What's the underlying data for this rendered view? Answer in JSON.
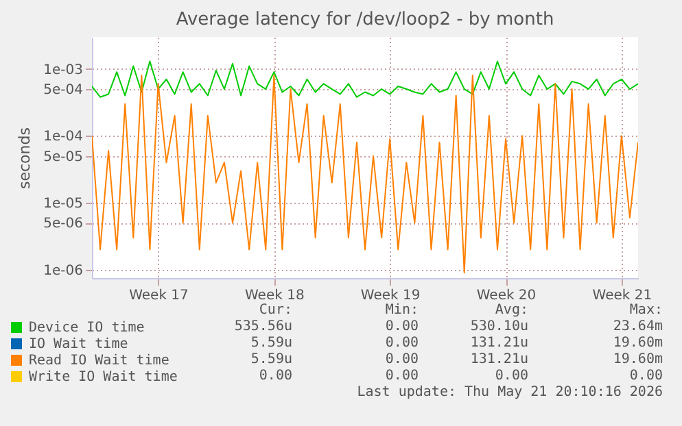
{
  "chart_data": {
    "type": "line",
    "title": "Average latency for /dev/loop2 - by month",
    "ylabel": "seconds",
    "log": true,
    "grid": true,
    "legend": "bottom",
    "categories": [
      null,
      null,
      null,
      null,
      null,
      null,
      null,
      null,
      "Week 17",
      null,
      null,
      null,
      null,
      null,
      null,
      null,
      null,
      null,
      null,
      null,
      null,
      null,
      "Week 18",
      null,
      null,
      null,
      null,
      null,
      null,
      null,
      null,
      null,
      null,
      null,
      null,
      null,
      "Week 19",
      null,
      null,
      null,
      null,
      null,
      null,
      null,
      null,
      null,
      null,
      null,
      null,
      null,
      "Week 20",
      null,
      null,
      null,
      null,
      null,
      null,
      null,
      null,
      null,
      null,
      null,
      null,
      null,
      "Week 21",
      null,
      null
    ],
    "ylim": [
      7.5e-07,
      0.003
    ],
    "yticks": [
      {
        "value": 1e-06,
        "label": "1e-06"
      },
      {
        "value": 5e-06,
        "label": "5e-06"
      },
      {
        "value": 1e-05,
        "label": "1e-05"
      },
      {
        "value": 5e-05,
        "label": "5e-05"
      },
      {
        "value": 0.0001,
        "label": "1e-04"
      },
      {
        "value": 0.0005,
        "label": "5e-04"
      },
      {
        "value": 0.001,
        "label": "1e-03"
      }
    ],
    "series": [
      {
        "name": "Device IO time",
        "color": "#00cc00",
        "values": [
          0.00055,
          0.00038,
          0.00042,
          0.0009,
          0.0004,
          0.0011,
          0.00045,
          0.0013,
          0.0005,
          0.0007,
          0.00042,
          0.0009,
          0.00045,
          0.0006,
          0.0004,
          0.00095,
          0.0005,
          0.0012,
          0.0004,
          0.0011,
          0.0006,
          0.0005,
          0.0009,
          0.00045,
          0.00055,
          0.0004,
          0.0007,
          0.00045,
          0.0006,
          0.0005,
          0.00042,
          0.0006,
          0.00038,
          0.00045,
          0.0004,
          0.0005,
          0.00042,
          0.00055,
          0.0005,
          0.00045,
          0.00042,
          0.0006,
          0.00045,
          0.0005,
          0.0009,
          0.0005,
          0.00042,
          0.0009,
          0.0005,
          0.0013,
          0.0006,
          0.0009,
          0.0005,
          0.0004,
          0.0008,
          0.0005,
          0.0006,
          0.00042,
          0.00065,
          0.0006,
          0.0005,
          0.0007,
          0.0004,
          0.0006,
          0.0007,
          0.0005,
          0.0006
        ]
      },
      {
        "name": "IO Wait time",
        "color": "#0066b3",
        "values": [
          null,
          null,
          null,
          null,
          null,
          null,
          null,
          null,
          null,
          null,
          null,
          null,
          null,
          null,
          null,
          null,
          null,
          null,
          null,
          null,
          null,
          null,
          null,
          null,
          null,
          null,
          null,
          null,
          null,
          null,
          null,
          null,
          null,
          null,
          null,
          null,
          null,
          null,
          null,
          null,
          null,
          null,
          null,
          null,
          null,
          null,
          null,
          null,
          null,
          null,
          null,
          null,
          null,
          null,
          null,
          null,
          null,
          null,
          null,
          null,
          null,
          null,
          null,
          null,
          null,
          null,
          null
        ]
      },
      {
        "name": "Read IO Wait time",
        "color": "#ff8000",
        "values": [
          0.0001,
          2e-06,
          6e-05,
          2e-06,
          0.0003,
          3e-06,
          0.0008,
          2e-06,
          0.0006,
          4e-05,
          0.0002,
          5e-06,
          0.0003,
          2e-06,
          0.0002,
          2e-05,
          4e-05,
          5e-06,
          3e-05,
          2e-06,
          4e-05,
          2e-06,
          0.0008,
          2e-06,
          0.0005,
          4e-05,
          0.0003,
          3e-06,
          0.0002,
          2e-05,
          0.0003,
          3e-06,
          8e-05,
          2e-06,
          5e-05,
          3e-06,
          9e-05,
          2e-06,
          4e-05,
          5e-06,
          0.0002,
          2e-06,
          8e-05,
          2e-06,
          0.0004,
          9e-07,
          0.0008,
          3e-06,
          0.0002,
          2e-06,
          9e-05,
          5e-06,
          0.0001,
          2e-06,
          0.0003,
          2e-06,
          0.0006,
          3e-06,
          0.0005,
          2e-06,
          0.0003,
          5e-06,
          0.0002,
          3e-06,
          0.0001,
          6e-06,
          8e-05
        ]
      },
      {
        "name": "Write IO Wait time",
        "color": "#ffcc00",
        "values": [
          null,
          null,
          null,
          null,
          null,
          null,
          null,
          null,
          null,
          null,
          null,
          null,
          null,
          null,
          null,
          null,
          null,
          null,
          null,
          null,
          null,
          null,
          null,
          null,
          null,
          null,
          null,
          null,
          null,
          null,
          null,
          null,
          null,
          null,
          null,
          null,
          null,
          null,
          null,
          null,
          null,
          null,
          null,
          null,
          null,
          null,
          null,
          null,
          null,
          null,
          null,
          null,
          null,
          null,
          null,
          null,
          null,
          null,
          null,
          null,
          null,
          null,
          null,
          null,
          null,
          null,
          null
        ]
      }
    ],
    "annotations": [
      "Cur:",
      "Min:",
      "Avg:",
      "Max:",
      "535.56u",
      "0.00",
      "530.10u",
      "23.64m",
      "5.59u",
      "0.00",
      "131.21u",
      "19.60m",
      "5.59u",
      "0.00",
      "131.21u",
      "19.60m",
      "0.00",
      "0.00",
      "0.00",
      "0.00",
      "Last update: Thu May 21 20:10:16 2026"
    ]
  }
}
